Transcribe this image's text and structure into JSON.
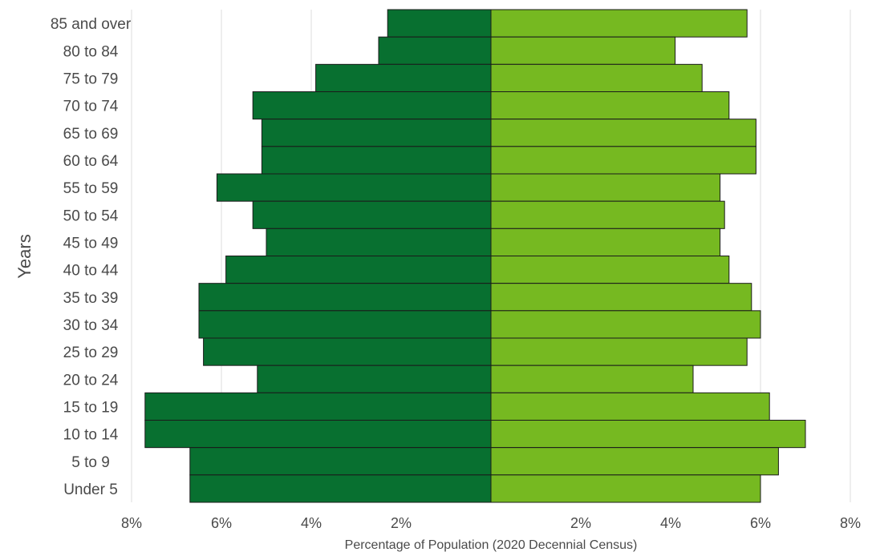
{
  "chart_data": {
    "type": "bar",
    "orientation": "horizontal-population-pyramid",
    "categories": [
      "85 and over",
      "80 to 84",
      "75 to 79",
      "70 to 74",
      "65 to 69",
      "60 to 64",
      "55 to 59",
      "50 to 54",
      "45 to 49",
      "40 to 44",
      "35 to 39",
      "30 to 34",
      "25 to 29",
      "20 to 24",
      "15 to 19",
      "10 to 14",
      "5 to 9",
      "Under 5"
    ],
    "series": [
      {
        "color": "#087030",
        "side": "left",
        "values": [
          2.3,
          2.5,
          3.9,
          5.3,
          5.1,
          5.1,
          6.1,
          5.3,
          5.0,
          5.9,
          6.5,
          6.5,
          6.4,
          5.2,
          7.7,
          7.7,
          6.7,
          6.7
        ]
      },
      {
        "color": "#76b921",
        "side": "right",
        "values": [
          5.7,
          4.1,
          4.7,
          5.3,
          5.9,
          5.9,
          5.1,
          5.2,
          5.1,
          5.3,
          5.8,
          6.0,
          5.7,
          4.5,
          6.2,
          7.0,
          6.4,
          6.0
        ]
      }
    ],
    "xlabel": "Percentage of Population (2020 Decennial Census)",
    "ylabel": "Years",
    "xlim": [
      -8,
      8
    ],
    "x_ticks": [
      {
        "value": -8,
        "label": "8%"
      },
      {
        "value": -6,
        "label": "6%"
      },
      {
        "value": -4,
        "label": "4%"
      },
      {
        "value": -2,
        "label": "2%"
      },
      {
        "value": 2,
        "label": "2%"
      },
      {
        "value": 4,
        "label": "4%"
      },
      {
        "value": 6,
        "label": "6%"
      },
      {
        "value": 8,
        "label": "8%"
      }
    ],
    "grid": true
  }
}
